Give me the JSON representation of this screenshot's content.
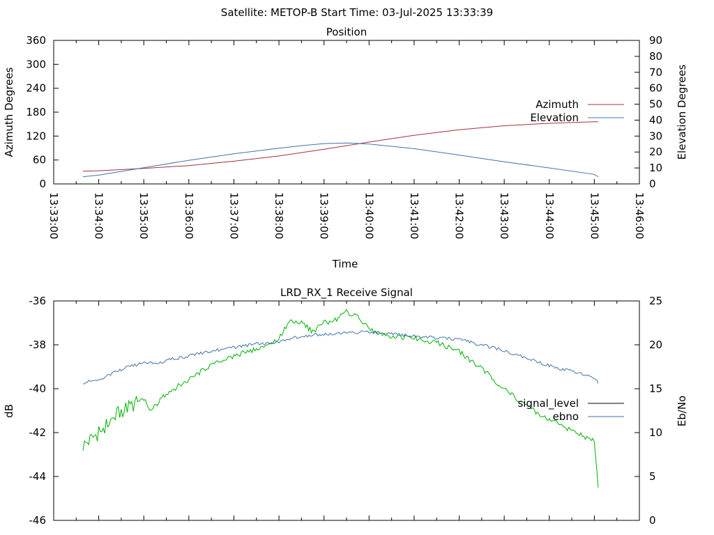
{
  "header": "Satellite: METOP-B    Start Time: 03-Jul-2025 13:33:39",
  "chart_data": [
    {
      "type": "line",
      "title": "Position",
      "xlabel": "Time",
      "ylabel": "Azimuth Degrees",
      "y2label": "Elevation Degrees",
      "x_ticks": [
        "13:33:00",
        "13:34:00",
        "13:35:00",
        "13:36:00",
        "13:37:00",
        "13:38:00",
        "13:39:00",
        "13:40:00",
        "13:41:00",
        "13:42:00",
        "13:43:00",
        "13:44:00",
        "13:45:00",
        "13:46:00"
      ],
      "xlim": [
        "13:33:00",
        "13:46:00"
      ],
      "ylim": [
        0,
        360
      ],
      "y_ticks": [
        "0",
        "60",
        "120",
        "180",
        "240",
        "300",
        "360"
      ],
      "y2lim": [
        0,
        90
      ],
      "y2_ticks": [
        "0",
        "10",
        "20",
        "30",
        "40",
        "50",
        "60",
        "70",
        "80",
        "90"
      ],
      "legend_position": "right",
      "series": [
        {
          "name": "Azimuth",
          "axis": "left",
          "color": "#a0303a",
          "x": [
            "13:33:39",
            "13:34:00",
            "13:35:00",
            "13:36:00",
            "13:37:00",
            "13:38:00",
            "13:39:00",
            "13:39:30",
            "13:40:00",
            "13:41:00",
            "13:42:00",
            "13:43:00",
            "13:44:00",
            "13:45:00",
            "13:45:05"
          ],
          "y": [
            32,
            33,
            39,
            46,
            57,
            70,
            87,
            96,
            105,
            122,
            136,
            146,
            152,
            156,
            156
          ]
        },
        {
          "name": "Elevation",
          "axis": "right",
          "color": "#3f73a8",
          "x": [
            "13:33:39",
            "13:34:00",
            "13:35:00",
            "13:36:00",
            "13:37:00",
            "13:38:00",
            "13:38:30",
            "13:39:00",
            "13:39:30",
            "13:40:00",
            "13:41:00",
            "13:42:00",
            "13:43:00",
            "13:44:00",
            "13:45:00",
            "13:45:05"
          ],
          "y": [
            4.5,
            5.5,
            10.2,
            14.8,
            18.9,
            22.4,
            24.0,
            25.3,
            25.7,
            25.0,
            22.1,
            18.1,
            13.9,
            10.0,
            6.0,
            4.5
          ]
        }
      ]
    },
    {
      "type": "line",
      "title": "LRD_RX_1 Receive Signal",
      "ylabel": "dB",
      "y2label": "Eb/No",
      "ylim": [
        -46,
        -36
      ],
      "y_ticks": [
        "-46",
        "-44",
        "-42",
        "-40",
        "-38",
        "-36"
      ],
      "y2lim": [
        0,
        25
      ],
      "y2_ticks": [
        "0",
        "5",
        "10",
        "15",
        "20",
        "25"
      ],
      "xlim": [
        "13:33:00",
        "13:46:00"
      ],
      "legend_position": "right",
      "series": [
        {
          "name": "signal_level",
          "axis": "left",
          "color": "#00b000",
          "x": [
            "13:33:39",
            "13:34:00",
            "13:34:30",
            "13:35:00",
            "13:35:10",
            "13:35:30",
            "13:36:00",
            "13:36:30",
            "13:37:00",
            "13:37:30",
            "13:38:00",
            "13:38:15",
            "13:38:30",
            "13:38:45",
            "13:39:00",
            "13:39:15",
            "13:39:30",
            "13:39:45",
            "13:40:00",
            "13:40:30",
            "13:41:00",
            "13:41:30",
            "13:42:00",
            "13:42:30",
            "13:43:00",
            "13:43:30",
            "13:44:00",
            "13:44:30",
            "13:45:00",
            "13:45:05"
          ],
          "y": [
            -42.6,
            -42.0,
            -41.0,
            -40.5,
            -41.0,
            -40.2,
            -39.6,
            -38.9,
            -38.5,
            -38.2,
            -37.7,
            -36.9,
            -37.0,
            -37.4,
            -37.0,
            -36.9,
            -36.5,
            -36.7,
            -37.3,
            -37.6,
            -37.7,
            -37.9,
            -38.3,
            -39.1,
            -40.0,
            -40.8,
            -41.4,
            -41.9,
            -42.4,
            -44.5
          ]
        },
        {
          "name": "ebno",
          "axis": "right",
          "color": "#3f73a8",
          "x": [
            "13:33:39",
            "13:34:00",
            "13:34:30",
            "13:35:00",
            "13:35:20",
            "13:35:30",
            "13:36:00",
            "13:36:30",
            "13:37:00",
            "13:37:30",
            "13:38:00",
            "13:38:30",
            "13:39:00",
            "13:39:30",
            "13:40:00",
            "13:40:30",
            "13:41:00",
            "13:41:30",
            "13:42:00",
            "13:42:30",
            "13:43:00",
            "13:43:30",
            "13:44:00",
            "13:44:30",
            "13:45:00",
            "13:45:05"
          ],
          "y": [
            15.7,
            16.0,
            17.2,
            18.0,
            17.8,
            18.3,
            18.7,
            19.3,
            19.7,
            20.1,
            20.3,
            21.0,
            21.2,
            21.3,
            21.5,
            21.2,
            21.0,
            20.8,
            20.6,
            20.0,
            19.3,
            18.5,
            17.6,
            17.0,
            16.3,
            15.6
          ]
        }
      ]
    }
  ]
}
